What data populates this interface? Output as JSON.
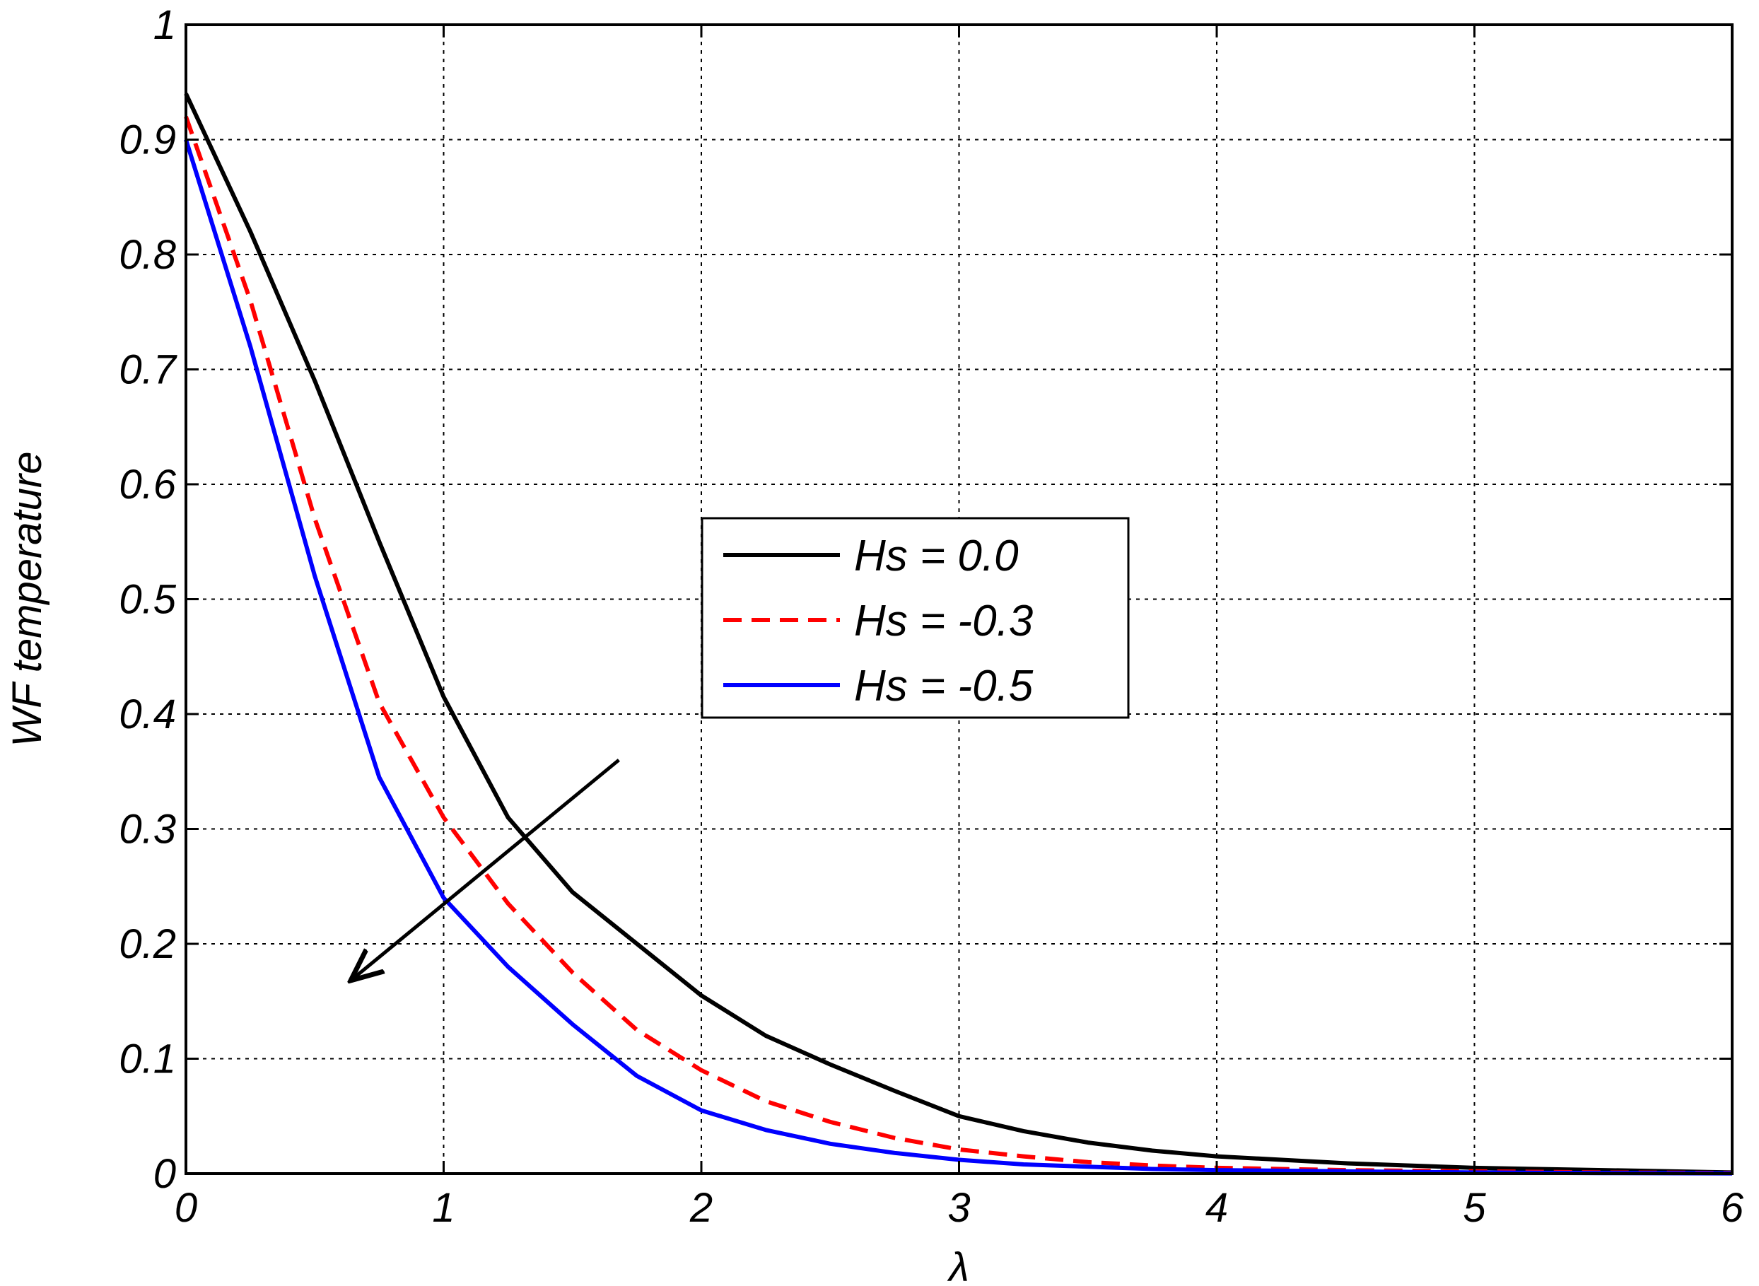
{
  "chart_data": {
    "type": "line",
    "title": "",
    "xlabel": "λ",
    "ylabel": "WF temperature",
    "xlim": [
      0,
      6
    ],
    "ylim": [
      0,
      1
    ],
    "xticks": [
      "0",
      "1",
      "2",
      "3",
      "4",
      "5",
      "6"
    ],
    "yticks": [
      "0",
      "0.1",
      "0.2",
      "0.3",
      "0.4",
      "0.5",
      "0.6",
      "0.7",
      "0.8",
      "0.9",
      "1"
    ],
    "grid": true,
    "legend_position": "center",
    "series": [
      {
        "name": "Hs = 0.0",
        "color": "#000000",
        "dash": "solid",
        "x": [
          0,
          0.25,
          0.5,
          0.75,
          1.0,
          1.25,
          1.5,
          1.75,
          2.0,
          2.25,
          2.5,
          2.75,
          3.0,
          3.25,
          3.5,
          3.75,
          4.0,
          4.5,
          5.0,
          5.5,
          6.0
        ],
        "y": [
          0.94,
          0.82,
          0.69,
          0.55,
          0.415,
          0.31,
          0.245,
          0.2,
          0.155,
          0.12,
          0.095,
          0.072,
          0.05,
          0.037,
          0.027,
          0.02,
          0.015,
          0.009,
          0.005,
          0.003,
          0.001
        ]
      },
      {
        "name": "Hs = -0.3",
        "color": "#ff0000",
        "dash": "dashed",
        "x": [
          0,
          0.25,
          0.5,
          0.75,
          1.0,
          1.25,
          1.5,
          1.75,
          2.0,
          2.25,
          2.5,
          2.75,
          3.0,
          3.25,
          3.5,
          3.75,
          4.0,
          4.5,
          5.0,
          5.5,
          6.0
        ],
        "y": [
          0.92,
          0.76,
          0.57,
          0.41,
          0.31,
          0.235,
          0.175,
          0.125,
          0.09,
          0.063,
          0.045,
          0.031,
          0.021,
          0.015,
          0.01,
          0.007,
          0.005,
          0.003,
          0.002,
          0.001,
          0.0005
        ]
      },
      {
        "name": "Hs = -0.5",
        "color": "#0000ff",
        "dash": "solid",
        "x": [
          0,
          0.25,
          0.5,
          0.75,
          1.0,
          1.25,
          1.5,
          1.75,
          2.0,
          2.25,
          2.5,
          2.75,
          3.0,
          3.25,
          3.5,
          3.75,
          4.0,
          4.5,
          5.0,
          5.5,
          6.0
        ],
        "y": [
          0.9,
          0.72,
          0.52,
          0.345,
          0.24,
          0.18,
          0.13,
          0.085,
          0.055,
          0.038,
          0.026,
          0.018,
          0.012,
          0.008,
          0.006,
          0.004,
          0.003,
          0.002,
          0.001,
          0.0005,
          0.0002
        ]
      }
    ],
    "annotations": [
      {
        "type": "arrow",
        "from": [
          1.68,
          0.36
        ],
        "to": [
          0.65,
          0.17
        ],
        "color": "#000000"
      }
    ]
  }
}
